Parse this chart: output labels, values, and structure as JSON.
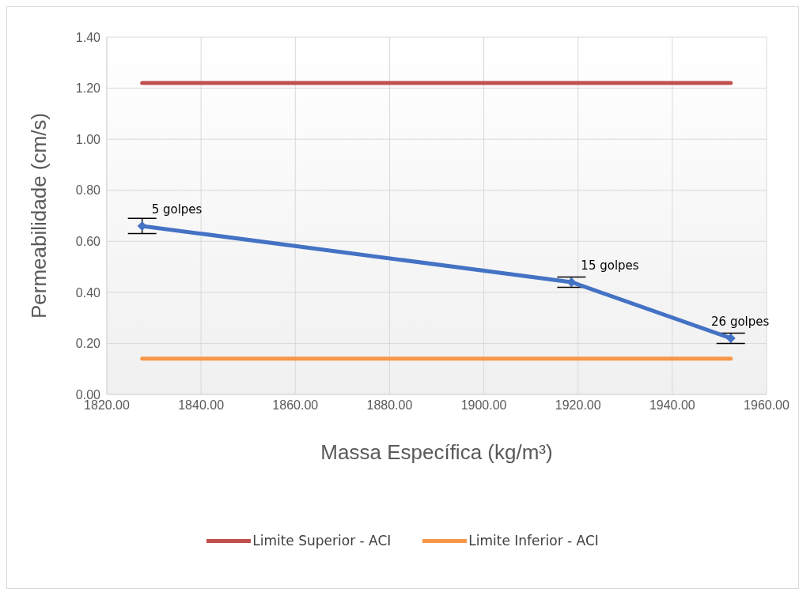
{
  "chart_data": {
    "type": "line",
    "xlabel": "Massa Específica (kg/m³)",
    "ylabel": "Permeabilidade (cm/s)",
    "series": [
      {
        "color": "#4472c4",
        "x": [
          1827.5,
          1918.6,
          1952.4
        ],
        "values": [
          0.66,
          0.44,
          0.22
        ],
        "errors": [
          0.03,
          0.02,
          0.02
        ],
        "marker": "diamond"
      },
      {
        "name": "Limite Superior - ACI",
        "color": "#c0504d",
        "x": [
          1827.5,
          1952.4
        ],
        "values": [
          1.22,
          1.22
        ],
        "marker": "none"
      },
      {
        "name": "Limite Inferior - ACI",
        "color": "#f79646",
        "x": [
          1827.5,
          1952.4
        ],
        "values": [
          0.14,
          0.14
        ],
        "marker": "none"
      }
    ],
    "annotations": [
      {
        "text": "5 golpes",
        "x": 1827.5,
        "y": 0.66
      },
      {
        "text": "15 golpes",
        "x": 1918.6,
        "y": 0.44
      },
      {
        "text": "26 golpes",
        "x": 1952.4,
        "y": 0.22
      }
    ],
    "xlim": [
      1820,
      1960
    ],
    "xticks": [
      {
        "value": 1820,
        "label": "1820.00"
      },
      {
        "value": 1840,
        "label": "1840.00"
      },
      {
        "value": 1860,
        "label": "1860.00"
      },
      {
        "value": 1880,
        "label": "1880.00"
      },
      {
        "value": 1900,
        "label": "1900.00"
      },
      {
        "value": 1920,
        "label": "1920.00"
      },
      {
        "value": 1940,
        "label": "1940.00"
      },
      {
        "value": 1960,
        "label": "1960.00"
      }
    ],
    "ylim": [
      0,
      1.4
    ],
    "yticks": [
      {
        "value": 0,
        "label": "0.00"
      },
      {
        "value": 0.2,
        "label": "0.20"
      },
      {
        "value": 0.4,
        "label": "0.40"
      },
      {
        "value": 0.6,
        "label": "0.60"
      },
      {
        "value": 0.8,
        "label": "0.80"
      },
      {
        "value": 1,
        "label": "1.00"
      },
      {
        "value": 1.2,
        "label": "1.20"
      },
      {
        "value": 1.4,
        "label": "1.40"
      }
    ],
    "grid": true,
    "legend": "bottom"
  }
}
